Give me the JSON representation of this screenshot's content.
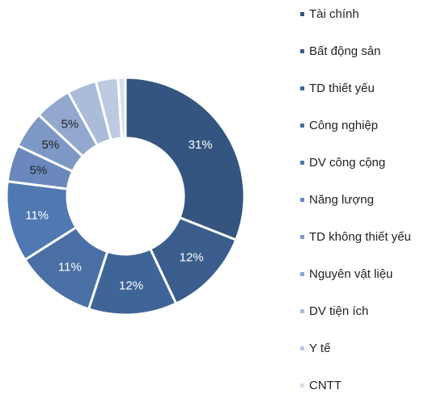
{
  "chart_data": {
    "type": "donut",
    "categories": [
      "Tài chính",
      "Bất động sản",
      "TD thiết yếu",
      "Công nghiệp",
      "DV công cộng",
      "Năng lượng",
      "TD không thiết yếu",
      "Nguyên vật liệu",
      "DV tiện ích",
      "Y tế",
      "CNTT"
    ],
    "values": [
      31,
      12,
      12,
      11,
      11,
      5,
      5,
      5,
      4,
      3,
      1
    ],
    "value_labels": [
      "31%",
      "12%",
      "12%",
      "11%",
      "11%",
      "5%",
      "5%",
      "5%",
      null,
      null,
      null
    ],
    "colors": [
      "#34557f",
      "#3a5d8d",
      "#3f6598",
      "#4a6fa5",
      "#5079b2",
      "#6a88bd",
      "#7e98c6",
      "#92a8cf",
      "#aabcda",
      "#bdcae2",
      "#d6dfee"
    ],
    "legend": "right"
  }
}
